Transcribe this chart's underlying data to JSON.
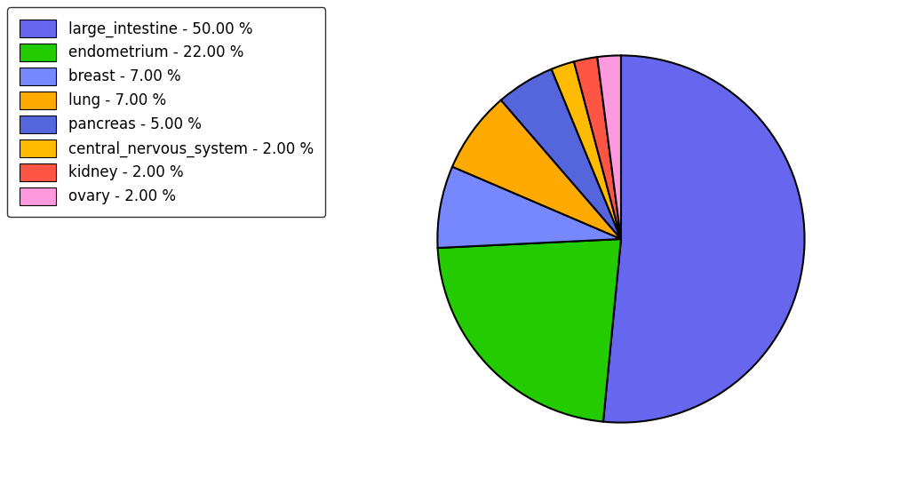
{
  "labels": [
    "large_intestine",
    "endometrium",
    "breast",
    "lung",
    "pancreas",
    "central_nervous_system",
    "kidney",
    "ovary"
  ],
  "values": [
    50.0,
    22.0,
    7.0,
    7.0,
    5.0,
    2.0,
    2.0,
    2.0
  ],
  "colors": [
    "#6666ee",
    "#22cc00",
    "#7788ff",
    "#ffaa00",
    "#5566dd",
    "#ffbb00",
    "#ff5544",
    "#ff99dd"
  ],
  "legend_labels": [
    "large_intestine - 50.00 %",
    "endometrium - 22.00 %",
    "breast - 7.00 %",
    "lung - 7.00 %",
    "pancreas - 5.00 %",
    "central_nervous_system - 2.00 %",
    "kidney - 2.00 %",
    "ovary - 2.00 %"
  ],
  "background_color": "#ffffff",
  "figsize": [
    10.13,
    5.38
  ],
  "dpi": 100
}
